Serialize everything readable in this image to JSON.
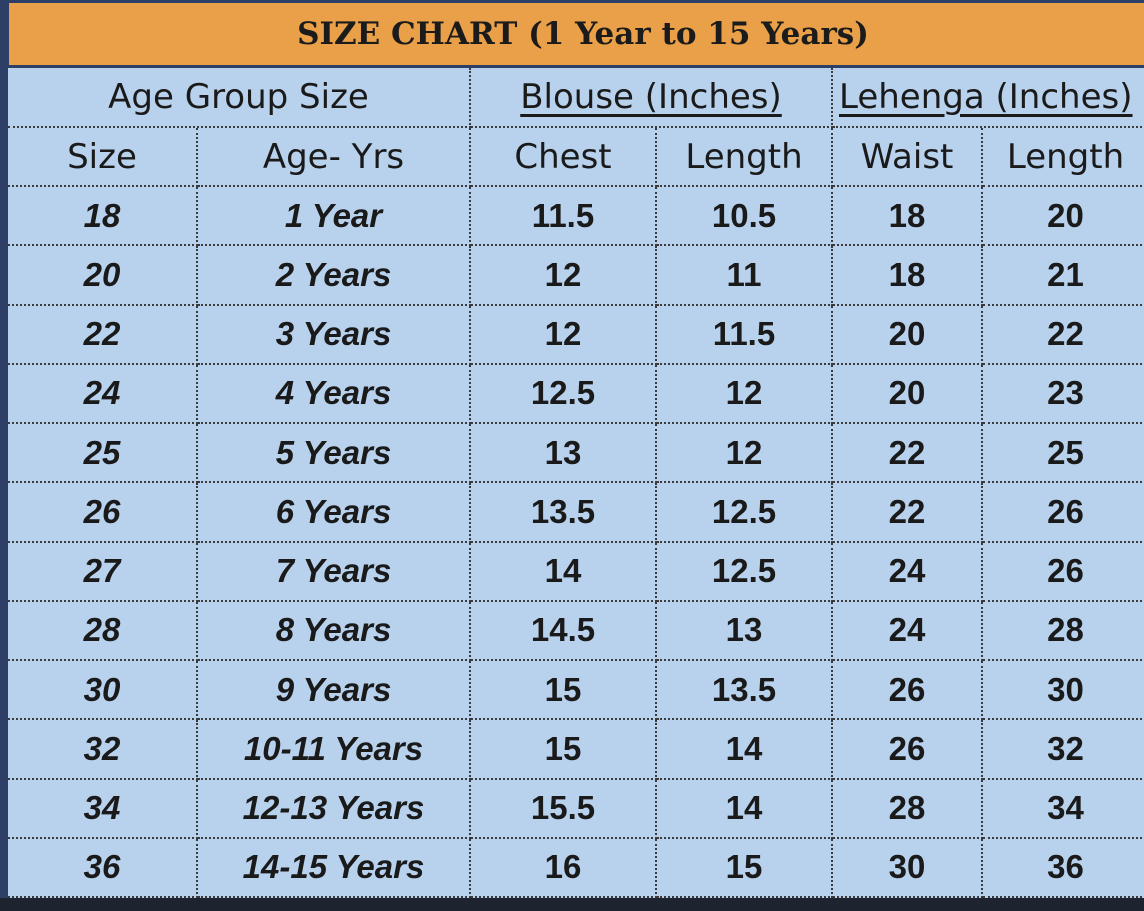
{
  "title": "SIZE CHART (1 Year to 15 Years)",
  "table": {
    "groups": [
      "Age Group Size",
      "Blouse (Inches)",
      "Lehenga (Inches)"
    ],
    "headers": [
      "Size",
      "Age- Yrs",
      "Chest",
      "Length",
      "Waist",
      "Length"
    ],
    "rows": [
      [
        "18",
        "1 Year",
        "11.5",
        "10.5",
        "18",
        "20"
      ],
      [
        "20",
        "2 Years",
        "12",
        "11",
        "18",
        "21"
      ],
      [
        "22",
        "3 Years",
        "12",
        "11.5",
        "20",
        "22"
      ],
      [
        "24",
        "4 Years",
        "12.5",
        "12",
        "20",
        "23"
      ],
      [
        "25",
        "5 Years",
        "13",
        "12",
        "22",
        "25"
      ],
      [
        "26",
        "6 Years",
        "13.5",
        "12.5",
        "22",
        "26"
      ],
      [
        "27",
        "7 Years",
        "14",
        "12.5",
        "24",
        "26"
      ],
      [
        "28",
        "8 Years",
        "14.5",
        "13",
        "24",
        "28"
      ],
      [
        "30",
        "9 Years",
        "15",
        "13.5",
        "26",
        "30"
      ],
      [
        "32",
        "10-11 Years",
        "15",
        "14",
        "26",
        "32"
      ],
      [
        "34",
        "12-13 Years",
        "15.5",
        "14",
        "28",
        "34"
      ],
      [
        "36",
        "14-15 Years",
        "16",
        "15",
        "30",
        "36"
      ]
    ]
  }
}
